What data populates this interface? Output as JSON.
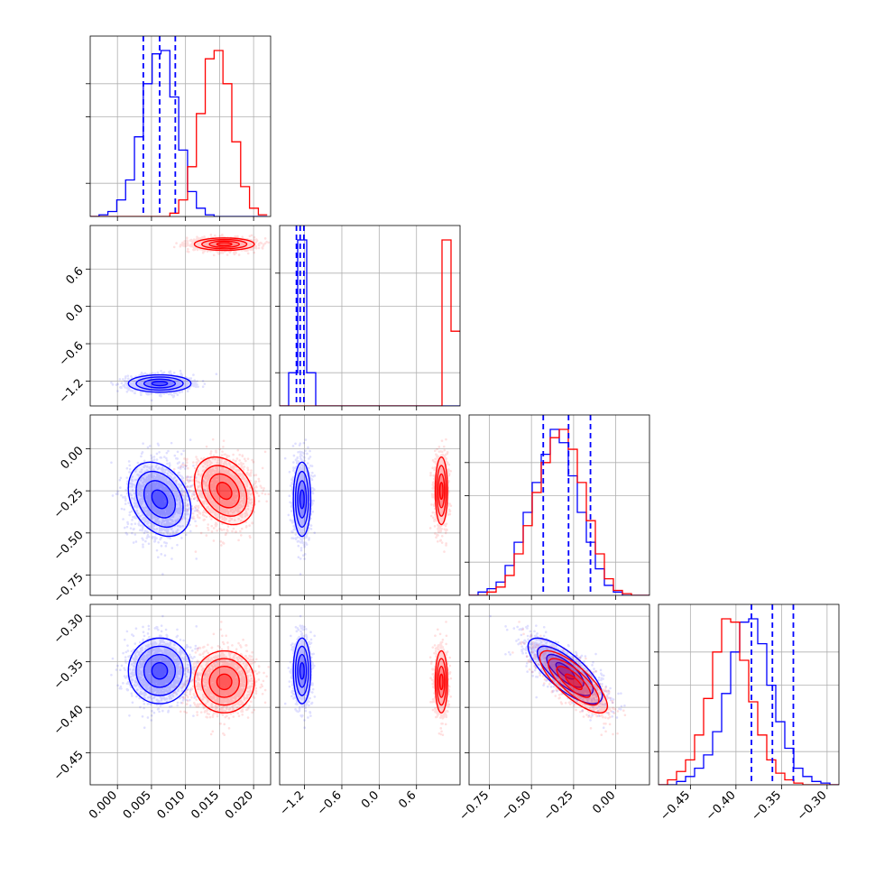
{
  "chart_data": {
    "type": "corner",
    "params": [
      "p0",
      "p1",
      "p2",
      "p3"
    ],
    "axes": {
      "p0": {
        "lim": [
          -0.004,
          0.0225
        ],
        "ticks": [
          0.0,
          0.005,
          0.01,
          0.015,
          0.02
        ],
        "tick_labels": [
          "0.000",
          "0.005",
          "0.010",
          "0.015",
          "0.020"
        ]
      },
      "p1": {
        "lim": [
          -1.6,
          1.3
        ],
        "ticks": [
          -1.2,
          -0.6,
          0.0,
          0.6
        ],
        "tick_labels": [
          "−1.2",
          "−0.6",
          "0.0",
          "0.6"
        ]
      },
      "p2": {
        "lim": [
          -0.87,
          0.2
        ],
        "ticks": [
          -0.75,
          -0.5,
          -0.25,
          0.0
        ],
        "tick_labels": [
          "−0.75",
          "−0.50",
          "−0.25",
          "0.00"
        ]
      },
      "p3": {
        "lim": [
          -0.485,
          -0.287
        ],
        "ticks": [
          -0.45,
          -0.4,
          -0.35,
          -0.3
        ],
        "tick_labels": [
          "−0.45",
          "−0.40",
          "−0.35",
          "−0.30"
        ]
      }
    },
    "series": [
      {
        "color": "#0000ff",
        "mean": [
          0.0062,
          -1.24,
          -0.3,
          -0.36
        ],
        "sd": [
          0.0023,
          0.07,
          0.11,
          0.018
        ],
        "corr23": -0.75,
        "quantiles_shown": true
      },
      {
        "color": "#ff0000",
        "mean": [
          0.0157,
          1.0,
          -0.25,
          -0.372
        ],
        "sd": [
          0.0022,
          0.05,
          0.1,
          0.017
        ],
        "corr23": -0.78,
        "quantiles_shown": false
      }
    ],
    "quantile_lines": {
      "p0": [
        0.0038,
        0.0062,
        0.0085
      ],
      "p1": [
        -1.33,
        -1.27,
        -1.21
      ],
      "p2": [
        -0.43,
        -0.28,
        -0.15
      ],
      "p3": [
        -0.383,
        -0.36,
        -0.337
      ]
    },
    "histograms": {
      "p0": {
        "bins": [
          -0.004,
          -0.0027,
          -0.0014,
          -0.0001,
          0.0012,
          0.0025,
          0.0038,
          0.0051,
          0.0064,
          0.0077,
          0.009,
          0.0103,
          0.0116,
          0.0129,
          0.0142,
          0.0155,
          0.0168,
          0.0181,
          0.0194,
          0.0207,
          0.022
        ],
        "blue": [
          0.0,
          0.01,
          0.03,
          0.1,
          0.22,
          0.48,
          0.8,
          0.98,
          1.0,
          0.72,
          0.4,
          0.15,
          0.05,
          0.01,
          0,
          0,
          0,
          0,
          0,
          0
        ],
        "red": [
          0,
          0,
          0,
          0,
          0,
          0,
          0,
          0,
          0,
          0.02,
          0.1,
          0.3,
          0.62,
          0.95,
          1.0,
          0.8,
          0.45,
          0.18,
          0.05,
          0.01
        ]
      },
      "p1": {
        "bins": [
          -1.6,
          -1.455,
          -1.31,
          -1.165,
          -1.02,
          -0.875,
          -0.73,
          -0.585,
          -0.44,
          -0.295,
          -0.15,
          -0.005,
          0.14,
          0.285,
          0.43,
          0.575,
          0.72,
          0.865,
          1.01,
          1.155,
          1.3
        ],
        "blue": [
          0,
          0.2,
          1.0,
          0.2,
          0,
          0,
          0,
          0,
          0,
          0,
          0,
          0,
          0,
          0,
          0,
          0,
          0,
          0,
          0,
          0
        ],
        "red": [
          0,
          0,
          0,
          0,
          0,
          0,
          0,
          0,
          0,
          0,
          0,
          0,
          0,
          0,
          0,
          0,
          0,
          0,
          1.0,
          0.45
        ]
      },
      "p2": {
        "bins": [
          -0.87,
          -0.8165,
          -0.763,
          -0.7095,
          -0.656,
          -0.6025,
          -0.549,
          -0.4955,
          -0.442,
          -0.3885,
          -0.335,
          -0.2815,
          -0.228,
          -0.1745,
          -0.121,
          -0.0675,
          -0.014,
          0.0395,
          0.093,
          0.1465,
          0.2
        ],
        "blue": [
          0,
          0.02,
          0.04,
          0.08,
          0.18,
          0.32,
          0.5,
          0.68,
          0.85,
          1.0,
          0.92,
          0.72,
          0.5,
          0.32,
          0.16,
          0.06,
          0.02,
          0,
          0,
          0
        ],
        "red": [
          0,
          0,
          0.02,
          0.05,
          0.12,
          0.25,
          0.42,
          0.62,
          0.8,
          0.95,
          1.0,
          0.88,
          0.68,
          0.45,
          0.25,
          0.1,
          0.03,
          0.01,
          0,
          0
        ]
      },
      "p3": {
        "bins": [
          -0.485,
          -0.4751,
          -0.4652,
          -0.4553,
          -0.4454,
          -0.4355,
          -0.4256,
          -0.4157,
          -0.4058,
          -0.3959,
          -0.386,
          -0.3761,
          -0.3662,
          -0.3563,
          -0.3464,
          -0.3365,
          -0.3266,
          -0.3167,
          -0.3068,
          -0.2969,
          -0.287
        ],
        "blue": [
          0,
          0,
          0.02,
          0.05,
          0.1,
          0.18,
          0.32,
          0.55,
          0.8,
          0.98,
          1.0,
          0.85,
          0.6,
          0.38,
          0.22,
          0.1,
          0.05,
          0.02,
          0.01,
          0
        ],
        "red": [
          0,
          0.03,
          0.08,
          0.15,
          0.3,
          0.52,
          0.8,
          1.0,
          0.98,
          0.75,
          0.5,
          0.3,
          0.15,
          0.07,
          0.03,
          0.01,
          0,
          0,
          0,
          0
        ]
      }
    },
    "grid": true,
    "legend": null
  }
}
